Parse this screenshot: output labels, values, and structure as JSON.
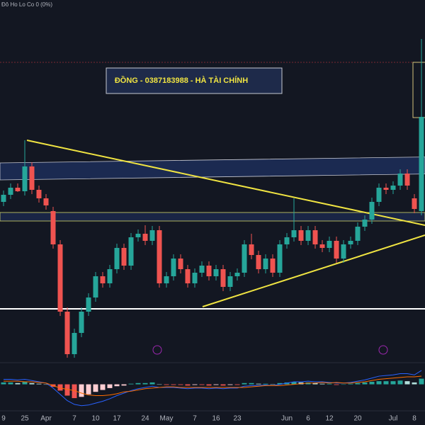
{
  "chart_data": {
    "type": "candlestick",
    "header": "Đô Ho Lo Co 0 (0%)",
    "annotation": "ĐỒNG - 0387183988 - HÀ TÀI CHÍNH",
    "categories": [
      "9",
      null,
      null,
      "25",
      null,
      null,
      "Apr",
      null,
      null,
      null,
      "7",
      null,
      null,
      "10",
      null,
      null,
      "17",
      null,
      null,
      null,
      "24",
      null,
      null,
      "May",
      null,
      null,
      null,
      "7",
      null,
      null,
      "16",
      null,
      null,
      "23",
      null,
      null,
      null,
      null,
      null,
      null,
      "Jun",
      null,
      null,
      "6",
      null,
      null,
      "12",
      null,
      null,
      null,
      "20",
      null,
      null,
      null,
      null,
      "Jul",
      null,
      null,
      "8",
      null
    ],
    "open": [
      315,
      325,
      335,
      330,
      365,
      332,
      320,
      302,
      255,
      160,
      100,
      130,
      160,
      180,
      210,
      200,
      220,
      250,
      225,
      265,
      270,
      260,
      275,
      200,
      210,
      235,
      220,
      200,
      215,
      225,
      210,
      220,
      195,
      210,
      215,
      255,
      240,
      220,
      235,
      215,
      255,
      265,
      275,
      260,
      275,
      255,
      250,
      260,
      235,
      255,
      260,
      280,
      290,
      315,
      335,
      332,
      338,
      355,
      320,
      302
    ],
    "high": [
      331,
      341,
      341,
      402,
      371,
      338,
      326,
      308,
      261,
      166,
      136,
      166,
      186,
      216,
      216,
      226,
      256,
      256,
      271,
      276,
      282,
      281,
      281,
      216,
      241,
      241,
      226,
      221,
      231,
      231,
      226,
      226,
      216,
      221,
      261,
      270,
      246,
      241,
      241,
      261,
      271,
      320,
      281,
      281,
      281,
      261,
      266,
      266,
      261,
      266,
      286,
      296,
      321,
      341,
      341,
      344,
      361,
      361,
      326,
      545
    ],
    "low": [
      309,
      319,
      329,
      324,
      326,
      314,
      304,
      249,
      154,
      95,
      95,
      124,
      154,
      174,
      194,
      194,
      214,
      219,
      219,
      259,
      254,
      254,
      194,
      194,
      204,
      214,
      194,
      194,
      209,
      204,
      204,
      189,
      189,
      204,
      209,
      234,
      214,
      214,
      209,
      209,
      249,
      259,
      254,
      254,
      249,
      244,
      244,
      229,
      229,
      249,
      254,
      274,
      284,
      309,
      326,
      326,
      332,
      332,
      299,
      296
    ],
    "close": [
      325,
      335,
      330,
      365,
      332,
      320,
      310,
      255,
      160,
      100,
      130,
      160,
      180,
      210,
      200,
      220,
      250,
      225,
      265,
      270,
      260,
      275,
      200,
      210,
      235,
      220,
      200,
      215,
      225,
      210,
      220,
      195,
      210,
      215,
      255,
      240,
      220,
      235,
      215,
      255,
      265,
      275,
      260,
      275,
      255,
      250,
      260,
      235,
      255,
      260,
      280,
      290,
      315,
      335,
      332,
      338,
      355,
      338,
      305,
      435
    ],
    "up_color": "#26a69a",
    "down_color": "#ef5350",
    "ylim": [
      90,
      600
    ],
    "macd": {
      "ylim": [
        -40,
        30
      ],
      "histogram": [
        3,
        3,
        2,
        4,
        2,
        1,
        0,
        -4,
        -10,
        -18,
        -22,
        -20,
        -16,
        -12,
        -9,
        -6,
        -3,
        -2,
        1,
        2,
        2,
        3,
        0,
        -1,
        -1,
        -1,
        -2,
        -1,
        -1,
        -2,
        -1,
        -2,
        -1,
        -1,
        2,
        2,
        1,
        1,
        0,
        2,
        3,
        4,
        3,
        3,
        2,
        1,
        1,
        -1,
        0,
        1,
        2,
        3,
        4,
        5,
        5,
        5,
        6,
        5,
        3,
        9
      ],
      "macd_line": [
        8,
        8,
        7,
        8,
        6,
        4,
        2,
        -6,
        -16,
        -26,
        -32,
        -34,
        -33,
        -30,
        -27,
        -23,
        -18,
        -14,
        -10,
        -7,
        -5,
        -3,
        -5,
        -5,
        -5,
        -6,
        -7,
        -6,
        -6,
        -7,
        -6,
        -7,
        -6,
        -6,
        -3,
        -2,
        -2,
        -1,
        -2,
        0,
        2,
        4,
        4,
        5,
        4,
        4,
        3,
        2,
        2,
        3,
        5,
        7,
        10,
        13,
        14,
        15,
        17,
        17,
        15,
        22
      ],
      "signal_line": [
        5,
        5,
        5,
        4,
        4,
        3,
        2,
        -2,
        -6,
        -8,
        -10,
        -14,
        -17,
        -18,
        -18,
        -17,
        -15,
        -12,
        -11,
        -9,
        -7,
        -6,
        -5,
        -4,
        -4,
        -5,
        -5,
        -5,
        -5,
        -5,
        -5,
        -5,
        -5,
        -5,
        -5,
        -4,
        -3,
        -2,
        -2,
        -2,
        -1,
        0,
        1,
        2,
        2,
        3,
        2,
        3,
        2,
        2,
        3,
        4,
        6,
        8,
        9,
        10,
        11,
        12,
        12,
        13
      ],
      "macd_color": "#2962ff",
      "signal_color": "#ff6d00"
    }
  }
}
